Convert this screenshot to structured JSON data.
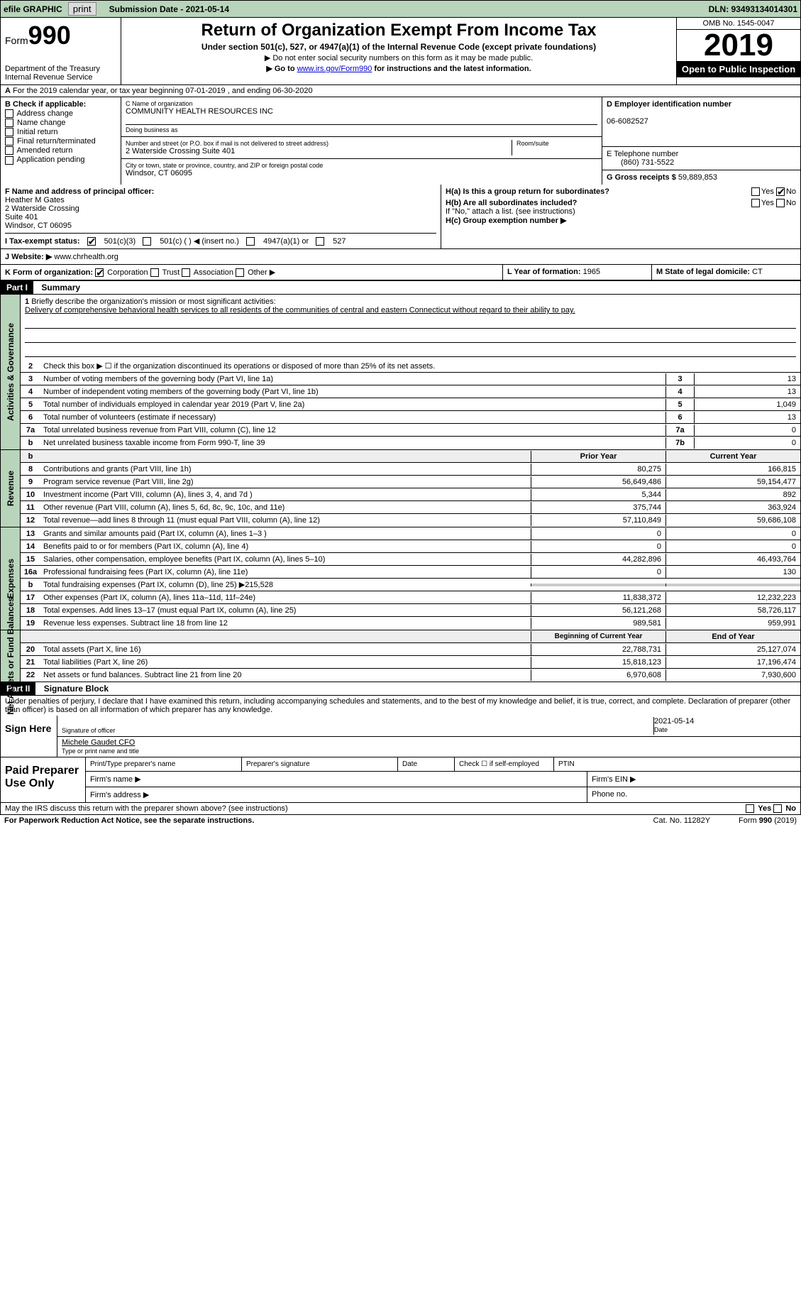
{
  "header": {
    "efile": "efile GRAPHIC",
    "print": "print",
    "submission_date_label": "Submission Date - 2021-05-14",
    "dln": "DLN: 93493134014301"
  },
  "form": {
    "form_label": "Form",
    "form_number": "990",
    "dept": "Department of the Treasury\nInternal Revenue Service",
    "title": "Return of Organization Exempt From Income Tax",
    "subtitle": "Under section 501(c), 527, or 4947(a)(1) of the Internal Revenue Code (except private foundations)",
    "note1": "▶ Do not enter social security numbers on this form as it may be made public.",
    "note2_pre": "▶ Go to ",
    "note2_link": "www.irs.gov/Form990",
    "note2_post": " for instructions and the latest information.",
    "omb": "OMB No. 1545-0047",
    "year": "2019",
    "inspect": "Open to Public Inspection"
  },
  "row_a": {
    "label": "A",
    "text": "For the 2019 calendar year, or tax year beginning 07-01-2019   , and ending 06-30-2020"
  },
  "col_b": {
    "label": "B Check if applicable:",
    "items": [
      "Address change",
      "Name change",
      "Initial return",
      "Final return/terminated",
      "Amended return",
      "Application pending"
    ]
  },
  "col_c": {
    "name_label": "C Name of organization",
    "name": "COMMUNITY HEALTH RESOURCES INC",
    "dba_label": "Doing business as",
    "addr_label": "Number and street (or P.O. box if mail is not delivered to street address)",
    "addr": "2 Waterside Crossing Suite 401",
    "room_label": "Room/suite",
    "city_label": "City or town, state or province, country, and ZIP or foreign postal code",
    "city": "Windsor, CT  06095"
  },
  "col_d": {
    "ein_label": "D Employer identification number",
    "ein": "06-6082527",
    "phone_label": "E Telephone number",
    "phone": "(860) 731-5522",
    "gross_label": "G Gross receipts $",
    "gross": "59,889,853"
  },
  "col_f": {
    "label": "F Name and address of principal officer:",
    "name": "Heather M Gates",
    "addr1": "2 Waterside Crossing",
    "addr2": "Suite 401",
    "addr3": "Windsor, CT  06095"
  },
  "col_h": {
    "ha_label": "H(a)  Is this a group return for subordinates?",
    "hb_label": "H(b)  Are all subordinates included?",
    "hb_note": "If \"No,\" attach a list. (see instructions)",
    "hc_label": "H(c)  Group exemption number ▶",
    "yes": "Yes",
    "no": "No"
  },
  "tax_status": {
    "label": "I  Tax-exempt status:",
    "opt1": "501(c)(3)",
    "opt2": "501(c) (  ) ◀ (insert no.)",
    "opt3": "4947(a)(1) or",
    "opt4": "527"
  },
  "website": {
    "label": "J  Website: ▶",
    "value": "www.chrhealth.org"
  },
  "k_row": {
    "k_label": "K Form of organization:",
    "k_opts": [
      "Corporation",
      "Trust",
      "Association",
      "Other ▶"
    ],
    "l_label": "L Year of formation:",
    "l_value": "1965",
    "m_label": "M State of legal domicile:",
    "m_value": "CT"
  },
  "part1": {
    "header": "Part I",
    "title": "Summary"
  },
  "mission": {
    "num": "1",
    "label": "Briefly describe the organization's mission or most significant activities:",
    "text": "Delivery of comprehensive behavioral health services to all residents of the communities of central and eastern Connecticut without regard to their ability to pay."
  },
  "governance": {
    "side": "Activities & Governance",
    "lines": [
      {
        "num": "2",
        "desc": "Check this box ▶ ☐  if the organization discontinued its operations or disposed of more than 25% of its net assets."
      },
      {
        "num": "3",
        "desc": "Number of voting members of the governing body (Part VI, line 1a)",
        "box": "3",
        "val": "13"
      },
      {
        "num": "4",
        "desc": "Number of independent voting members of the governing body (Part VI, line 1b)",
        "box": "4",
        "val": "13"
      },
      {
        "num": "5",
        "desc": "Total number of individuals employed in calendar year 2019 (Part V, line 2a)",
        "box": "5",
        "val": "1,049"
      },
      {
        "num": "6",
        "desc": "Total number of volunteers (estimate if necessary)",
        "box": "6",
        "val": "13"
      },
      {
        "num": "7a",
        "desc": "Total unrelated business revenue from Part VIII, column (C), line 12",
        "box": "7a",
        "val": "0"
      },
      {
        "num": "b",
        "desc": "Net unrelated business taxable income from Form 990-T, line 39",
        "box": "7b",
        "val": "0"
      }
    ]
  },
  "revenue": {
    "side": "Revenue",
    "header_prior": "Prior Year",
    "header_current": "Current Year",
    "lines": [
      {
        "num": "8",
        "desc": "Contributions and grants (Part VIII, line 1h)",
        "prior": "80,275",
        "current": "166,815"
      },
      {
        "num": "9",
        "desc": "Program service revenue (Part VIII, line 2g)",
        "prior": "56,649,486",
        "current": "59,154,477"
      },
      {
        "num": "10",
        "desc": "Investment income (Part VIII, column (A), lines 3, 4, and 7d )",
        "prior": "5,344",
        "current": "892"
      },
      {
        "num": "11",
        "desc": "Other revenue (Part VIII, column (A), lines 5, 6d, 8c, 9c, 10c, and 11e)",
        "prior": "375,744",
        "current": "363,924"
      },
      {
        "num": "12",
        "desc": "Total revenue—add lines 8 through 11 (must equal Part VIII, column (A), line 12)",
        "prior": "57,110,849",
        "current": "59,686,108"
      }
    ]
  },
  "expenses": {
    "side": "Expenses",
    "lines": [
      {
        "num": "13",
        "desc": "Grants and similar amounts paid (Part IX, column (A), lines 1–3 )",
        "prior": "0",
        "current": "0"
      },
      {
        "num": "14",
        "desc": "Benefits paid to or for members (Part IX, column (A), line 4)",
        "prior": "0",
        "current": "0"
      },
      {
        "num": "15",
        "desc": "Salaries, other compensation, employee benefits (Part IX, column (A), lines 5–10)",
        "prior": "44,282,896",
        "current": "46,493,764"
      },
      {
        "num": "16a",
        "desc": "Professional fundraising fees (Part IX, column (A), line 11e)",
        "prior": "0",
        "current": "130"
      },
      {
        "num": "b",
        "desc": "Total fundraising expenses (Part IX, column (D), line 25) ▶215,528",
        "prior": "",
        "current": "",
        "shaded": true
      },
      {
        "num": "17",
        "desc": "Other expenses (Part IX, column (A), lines 11a–11d, 11f–24e)",
        "prior": "11,838,372",
        "current": "12,232,223"
      },
      {
        "num": "18",
        "desc": "Total expenses. Add lines 13–17 (must equal Part IX, column (A), line 25)",
        "prior": "56,121,268",
        "current": "58,726,117"
      },
      {
        "num": "19",
        "desc": "Revenue less expenses. Subtract line 18 from line 12",
        "prior": "989,581",
        "current": "959,991"
      }
    ]
  },
  "netassets": {
    "side": "Net Assets or Fund Balances",
    "header_begin": "Beginning of Current Year",
    "header_end": "End of Year",
    "lines": [
      {
        "num": "20",
        "desc": "Total assets (Part X, line 16)",
        "prior": "22,788,731",
        "current": "25,127,074"
      },
      {
        "num": "21",
        "desc": "Total liabilities (Part X, line 26)",
        "prior": "15,818,123",
        "current": "17,196,474"
      },
      {
        "num": "22",
        "desc": "Net assets or fund balances. Subtract line 21 from line 20",
        "prior": "6,970,608",
        "current": "7,930,600"
      }
    ]
  },
  "part2": {
    "header": "Part II",
    "title": "Signature Block",
    "perjury": "Under penalties of perjury, I declare that I have examined this return, including accompanying schedules and statements, and to the best of my knowledge and belief, it is true, correct, and complete. Declaration of preparer (other than officer) is based on all information of which preparer has any knowledge."
  },
  "sign": {
    "label": "Sign Here",
    "sig_label": "Signature of officer",
    "date_label": "Date",
    "date": "2021-05-14",
    "name": "Michele Gaudet CFO",
    "name_label": "Type or print name and title"
  },
  "preparer": {
    "label": "Paid Preparer Use Only",
    "h1": "Print/Type preparer's name",
    "h2": "Preparer's signature",
    "h3": "Date",
    "h4": "Check ☐ if self-employed",
    "h5": "PTIN",
    "firm_name": "Firm's name   ▶",
    "firm_ein": "Firm's EIN ▶",
    "firm_addr": "Firm's address ▶",
    "phone": "Phone no."
  },
  "footer": {
    "irs_discuss": "May the IRS discuss this return with the preparer shown above? (see instructions)",
    "yes": "Yes",
    "no": "No",
    "paperwork": "For Paperwork Reduction Act Notice, see the separate instructions.",
    "cat": "Cat. No. 11282Y",
    "form": "Form 990 (2019)"
  }
}
